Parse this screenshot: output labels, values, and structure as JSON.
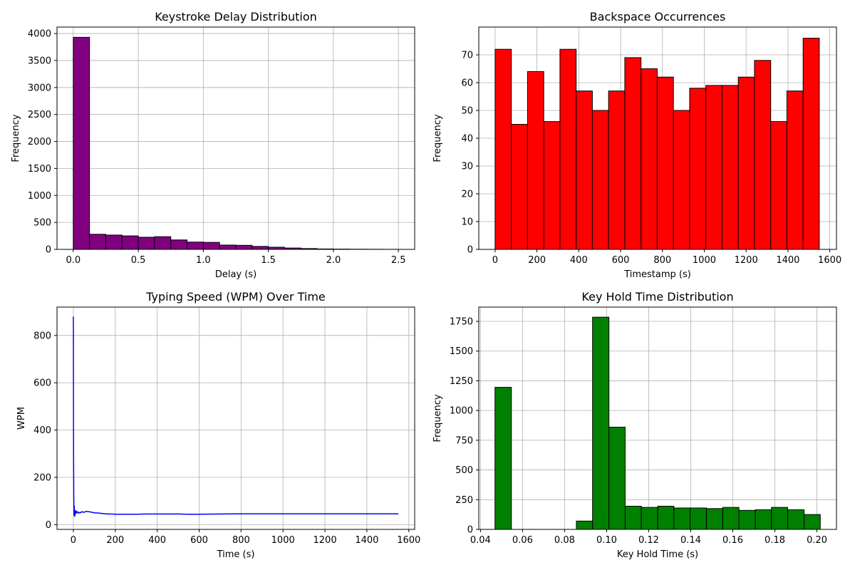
{
  "chart_data": [
    {
      "type": "bar",
      "title": "Keystroke Delay Distribution",
      "xlabel": "Delay (s)",
      "ylabel": "Frequency",
      "grid": true,
      "bar_color": "#800080",
      "edge_color": "#000000",
      "xlim": [
        -0.125,
        2.625
      ],
      "ylim": [
        0,
        4120
      ],
      "xticks": [
        0.0,
        0.5,
        1.0,
        1.5,
        2.0,
        2.5
      ],
      "xtick_labels": [
        "0.0",
        "0.5",
        "1.0",
        "1.5",
        "2.0",
        "2.5"
      ],
      "yticks": [
        0,
        500,
        1000,
        1500,
        2000,
        2500,
        3000,
        3500,
        4000
      ],
      "ytick_labels": [
        "0",
        "500",
        "1000",
        "1500",
        "2000",
        "2500",
        "3000",
        "3500",
        "4000"
      ],
      "bin_edges": [
        0.0,
        0.125,
        0.25,
        0.375,
        0.5,
        0.625,
        0.75,
        0.875,
        1.0,
        1.125,
        1.25,
        1.375,
        1.5,
        1.625,
        1.75,
        1.875,
        2.0,
        2.125,
        2.25,
        2.375,
        2.5
      ],
      "values": [
        3930,
        280,
        265,
        250,
        225,
        235,
        175,
        135,
        130,
        80,
        75,
        55,
        40,
        25,
        15,
        8,
        5,
        3,
        2,
        1
      ]
    },
    {
      "type": "bar",
      "title": "Backspace Occurrences",
      "xlabel": "Timestamp (s)",
      "ylabel": "Frequency",
      "grid": true,
      "bar_color": "#ff0000",
      "edge_color": "#000000",
      "xlim": [
        -78,
        1632
      ],
      "ylim": [
        0,
        80
      ],
      "xticks": [
        0,
        200,
        400,
        600,
        800,
        1000,
        1200,
        1400,
        1600
      ],
      "xtick_labels": [
        "0",
        "200",
        "400",
        "600",
        "800",
        "1000",
        "1200",
        "1400",
        "1600"
      ],
      "yticks": [
        0,
        10,
        20,
        30,
        40,
        50,
        60,
        70
      ],
      "ytick_labels": [
        "0",
        "10",
        "20",
        "30",
        "40",
        "50",
        "60",
        "70"
      ],
      "bin_edges": [
        0,
        77.5,
        155,
        232.5,
        310,
        387.5,
        465,
        542.5,
        620,
        697.5,
        775,
        852.5,
        930,
        1007.5,
        1085,
        1162.5,
        1240,
        1317.5,
        1395,
        1472.5,
        1550
      ],
      "values": [
        72,
        45,
        64,
        46,
        72,
        57,
        50,
        57,
        69,
        65,
        62,
        50,
        58,
        59,
        59,
        62,
        68,
        46,
        57,
        76
      ]
    },
    {
      "type": "line",
      "title": "Typing Speed (WPM) Over Time",
      "xlabel": "Time (s)",
      "ylabel": "WPM",
      "grid": true,
      "line_color": "#0000ff",
      "xlim": [
        -78,
        1628
      ],
      "ylim": [
        -20,
        920
      ],
      "xticks": [
        0,
        200,
        400,
        600,
        800,
        1000,
        1200,
        1400,
        1600
      ],
      "xtick_labels": [
        "0",
        "200",
        "400",
        "600",
        "800",
        "1000",
        "1200",
        "1400",
        "1600"
      ],
      "yticks": [
        0,
        200,
        400,
        600,
        800
      ],
      "ytick_labels": [
        "0",
        "200",
        "400",
        "600",
        "800"
      ],
      "x": [
        0,
        0.5,
        1,
        2,
        3,
        4,
        5,
        6,
        8,
        10,
        12,
        15,
        20,
        25,
        30,
        35,
        40,
        50,
        60,
        70,
        80,
        90,
        100,
        120,
        140,
        160,
        180,
        200,
        250,
        300,
        350,
        400,
        450,
        500,
        550,
        600,
        700,
        800,
        900,
        1000,
        1100,
        1200,
        1300,
        1400,
        1500,
        1550
      ],
      "y": [
        880,
        600,
        300,
        120,
        40,
        80,
        60,
        35,
        55,
        45,
        60,
        50,
        55,
        48,
        52,
        50,
        55,
        52,
        56,
        55,
        54,
        52,
        50,
        49,
        47,
        45,
        45,
        44,
        44,
        44,
        45,
        45,
        45,
        45,
        44,
        44,
        45,
        46,
        46,
        46,
        46,
        46,
        46,
        46,
        46,
        46
      ]
    },
    {
      "type": "bar",
      "title": "Key Hold Time Distribution",
      "xlabel": "Key Hold Time (s)",
      "ylabel": "Frequency",
      "grid": true,
      "bar_color": "#008000",
      "edge_color": "#000000",
      "xlim": [
        0.0392,
        0.2093
      ],
      "ylim": [
        0,
        1870
      ],
      "xticks": [
        0.04,
        0.06,
        0.08,
        0.1,
        0.12,
        0.14,
        0.16,
        0.18,
        0.2
      ],
      "xtick_labels": [
        "0.04",
        "0.06",
        "0.08",
        "0.10",
        "0.12",
        "0.14",
        "0.16",
        "0.18",
        "0.20"
      ],
      "yticks": [
        0,
        250,
        500,
        750,
        1000,
        1250,
        1500,
        1750
      ],
      "ytick_labels": [
        "0",
        "250",
        "500",
        "750",
        "1000",
        "1250",
        "1500",
        "1750"
      ],
      "bin_edges": [
        0.0469,
        0.0547,
        0.0624,
        0.0701,
        0.0779,
        0.0856,
        0.0933,
        0.1011,
        0.1088,
        0.1165,
        0.1243,
        0.132,
        0.1397,
        0.1475,
        0.1552,
        0.1629,
        0.1707,
        0.1784,
        0.1861,
        0.1939,
        0.2016
      ],
      "values": [
        1195,
        0,
        0,
        0,
        0,
        70,
        1785,
        860,
        195,
        185,
        195,
        180,
        180,
        175,
        185,
        160,
        165,
        185,
        165,
        125
      ]
    }
  ]
}
